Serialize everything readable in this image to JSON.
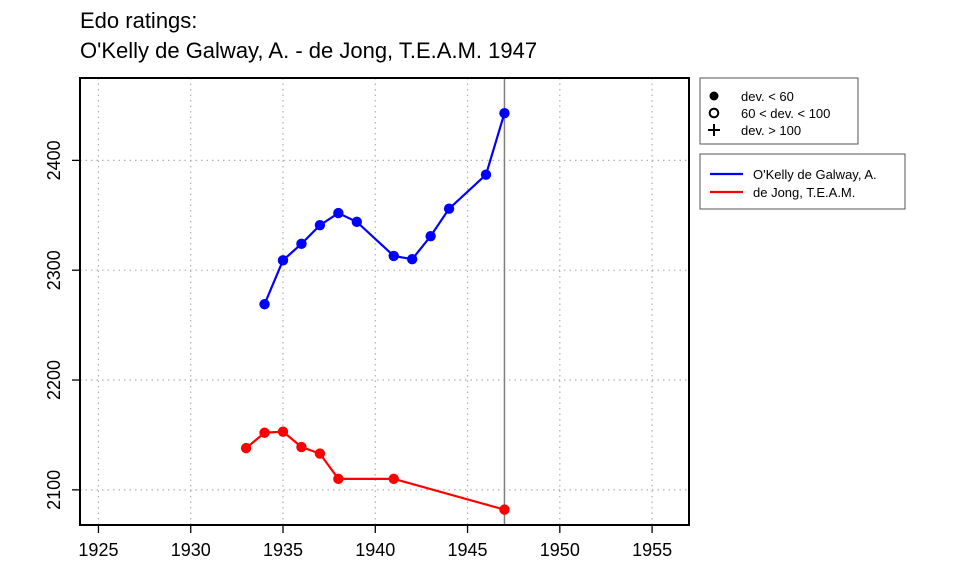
{
  "chart_data": {
    "type": "line",
    "title": "Edo ratings:",
    "subtitle": "O'Kelly de Galway, A. - de Jong, T.E.A.M. 1947",
    "xlabel": "",
    "ylabel": "",
    "xlim": [
      1924,
      1957
    ],
    "ylim": [
      2068,
      2475
    ],
    "x_ticks": [
      1925,
      1930,
      1935,
      1940,
      1945,
      1950,
      1955
    ],
    "y_ticks": [
      2100,
      2200,
      2300,
      2400
    ],
    "grid": true,
    "vertical_marker": 1947,
    "series": [
      {
        "name": "O'Kelly de Galway, A.",
        "color": "#0000ff",
        "marker": "filled-circle",
        "points": [
          {
            "x": 1934,
            "y": 2269
          },
          {
            "x": 1935,
            "y": 2309
          },
          {
            "x": 1936,
            "y": 2324
          },
          {
            "x": 1937,
            "y": 2341
          },
          {
            "x": 1938,
            "y": 2352
          },
          {
            "x": 1939,
            "y": 2344
          },
          {
            "x": 1941,
            "y": 2313
          },
          {
            "x": 1942,
            "y": 2310
          },
          {
            "x": 1943,
            "y": 2331
          },
          {
            "x": 1944,
            "y": 2356
          },
          {
            "x": 1946,
            "y": 2387
          },
          {
            "x": 1947,
            "y": 2443
          }
        ]
      },
      {
        "name": "de Jong, T.E.A.M.",
        "color": "#ff0000",
        "marker": "filled-circle",
        "points": [
          {
            "x": 1933,
            "y": 2138
          },
          {
            "x": 1934,
            "y": 2152
          },
          {
            "x": 1935,
            "y": 2153
          },
          {
            "x": 1936,
            "y": 2139
          },
          {
            "x": 1937,
            "y": 2133
          },
          {
            "x": 1938,
            "y": 2110
          },
          {
            "x": 1941,
            "y": 2110
          },
          {
            "x": 1947,
            "y": 2082
          }
        ]
      }
    ],
    "marker_legend": [
      {
        "symbol": "filled-circle",
        "label": "dev. < 60"
      },
      {
        "symbol": "open-circle",
        "label": "60 < dev. < 100"
      },
      {
        "symbol": "plus",
        "label": "dev. > 100"
      }
    ],
    "legend_position": "right"
  }
}
